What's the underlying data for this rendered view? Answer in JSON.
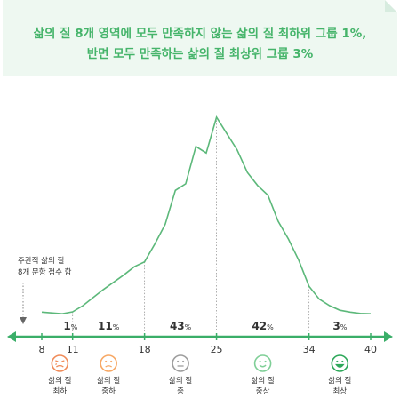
{
  "headline": {
    "line1": "삶의 질 8개 영역에 모두 만족하지 않는 삶의 질 최하위 그룹 1%,",
    "line2": "반면 모두 만족하는 삶의 질 최상위 그룹 3%"
  },
  "y_axis_label": {
    "line1": "주관적 삶의 질",
    "line2": "8개 문항 점수 합"
  },
  "chart_data": {
    "type": "line",
    "x_range": [
      8,
      40
    ],
    "x_ticks": [
      8,
      11,
      18,
      25,
      34,
      40
    ],
    "x": [
      8,
      10,
      11,
      12,
      13,
      14,
      16,
      17,
      18,
      19,
      20,
      21,
      22,
      23,
      24,
      25,
      26,
      27,
      28,
      29,
      30,
      31,
      32,
      33,
      34,
      35,
      36,
      37,
      38,
      39,
      40
    ],
    "y": [
      1.0,
      0.5,
      1.1,
      3.0,
      5.5,
      8.0,
      12.5,
      15.0,
      16.5,
      22.0,
      28.0,
      38.5,
      40.5,
      52.0,
      50.0,
      61.0,
      56.0,
      51.0,
      44.0,
      40.0,
      37.0,
      29.0,
      23.5,
      17.0,
      9.0,
      5.0,
      3.0,
      1.6,
      1.0,
      0.6,
      0.5
    ],
    "segments": [
      {
        "start": 8,
        "end": 11,
        "percent": "1",
        "unit": "%"
      },
      {
        "start": 11,
        "end": 18,
        "percent": "11",
        "unit": "%"
      },
      {
        "start": 18,
        "end": 25,
        "percent": "43",
        "unit": "%"
      },
      {
        "start": 25,
        "end": 34,
        "percent": "42",
        "unit": "%"
      },
      {
        "start": 34,
        "end": 40,
        "percent": "3",
        "unit": "%"
      }
    ],
    "line_color": "#5cb87a",
    "axis_color": "#3aae68"
  },
  "faces": [
    {
      "icon": "crying-face-icon",
      "color": "#f08c5a",
      "line1": "삶의 질",
      "line2": "최하"
    },
    {
      "icon": "sad-face-icon",
      "color": "#f7a865",
      "line1": "삶의 질",
      "line2": "중하"
    },
    {
      "icon": "neutral-face-icon",
      "color": "#9e9e9e",
      "line1": "삶의 질",
      "line2": "중"
    },
    {
      "icon": "smile-face-icon",
      "color": "#7fcf97",
      "line1": "삶의 질",
      "line2": "중상"
    },
    {
      "icon": "grin-face-icon",
      "color": "#2ea85a",
      "line1": "삶의 질",
      "line2": "최상"
    }
  ]
}
